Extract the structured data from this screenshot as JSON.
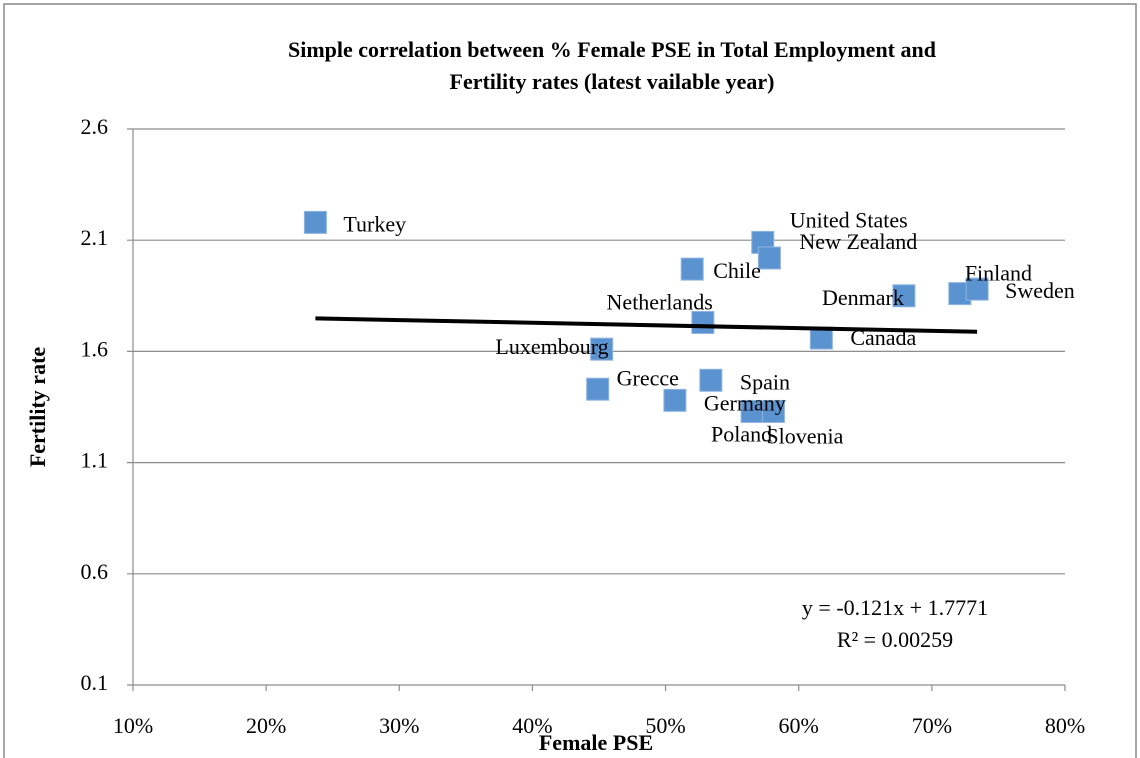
{
  "chart_data": {
    "type": "scatter",
    "title": "Simple correlation between % Female PSE in Total Employment and\nFertility rates (latest vailable year)",
    "x_label": "Female PSE",
    "y_label": "Fertility rate",
    "color": "#5b93d1",
    "labels": [
      "Turkey",
      "United States",
      "New Zealand",
      "Chile",
      "Denmark",
      "Finland",
      "Sweden",
      "Netherlands",
      "Canada",
      "Luxembourg",
      "Spain",
      "Grecce",
      "Germany",
      "Poland",
      "Slovenia"
    ],
    "x": [
      0.237,
      0.573,
      0.578,
      0.52,
      0.679,
      0.721,
      0.734,
      0.528,
      0.617,
      0.452,
      0.534,
      0.449,
      0.507,
      0.565,
      0.581
    ],
    "values": [
      2.18,
      2.09,
      2.02,
      1.97,
      1.85,
      1.86,
      1.88,
      1.73,
      1.66,
      1.61,
      1.47,
      1.43,
      1.38,
      1.33,
      1.33
    ],
    "xlim": [
      0.1,
      0.8
    ],
    "xticks": [
      {
        "value": 0.1,
        "label": "10%"
      },
      {
        "value": 0.2,
        "label": "20%"
      },
      {
        "value": 0.3,
        "label": "30%"
      },
      {
        "value": 0.4,
        "label": "40%"
      },
      {
        "value": 0.5,
        "label": "50%"
      },
      {
        "value": 0.6,
        "label": "60%"
      },
      {
        "value": 0.7,
        "label": "70%"
      },
      {
        "value": 0.8,
        "label": "80%"
      }
    ],
    "ylim": [
      0.1,
      2.6
    ],
    "yticks": [
      {
        "value": 0.1,
        "label": "0.1"
      },
      {
        "value": 0.6,
        "label": "0.6"
      },
      {
        "value": 1.1,
        "label": "1.1"
      },
      {
        "value": 1.6,
        "label": "1.6"
      },
      {
        "value": 2.1,
        "label": "2.1"
      },
      {
        "value": 2.6,
        "label": "2.6"
      }
    ],
    "grid": true,
    "trendline": {
      "slope": -0.121,
      "intercept": 1.7771,
      "equation": "y = -0.121x + 1.7771",
      "r2_label": "R² = 0.00259"
    }
  }
}
